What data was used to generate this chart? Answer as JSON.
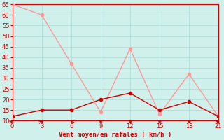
{
  "xlabel": "Vent moyen/en rafales ( km/h )",
  "x": [
    0,
    3,
    6,
    9,
    12,
    15,
    18,
    21
  ],
  "wind_avg": [
    12,
    15,
    15,
    20,
    23,
    15,
    19,
    12
  ],
  "wind_gust": [
    65,
    60,
    37,
    14,
    44,
    13,
    32,
    12
  ],
  "avg_color": "#cc0000",
  "gust_color": "#ff9999",
  "bg_color": "#cff0eb",
  "axis_color": "#cc0000",
  "tick_label_color": "#cc0000",
  "xlabel_color": "#cc0000",
  "grid_color": "#b0ddd8",
  "ylim": [
    10,
    65
  ],
  "yticks": [
    10,
    15,
    20,
    25,
    30,
    35,
    40,
    45,
    50,
    55,
    60,
    65
  ],
  "xticks": [
    0,
    3,
    6,
    9,
    12,
    15,
    18,
    21
  ],
  "markersize": 3,
  "linewidth": 1.0,
  "arrow_angles": [
    45,
    45,
    225,
    270,
    270,
    270,
    270,
    45
  ]
}
